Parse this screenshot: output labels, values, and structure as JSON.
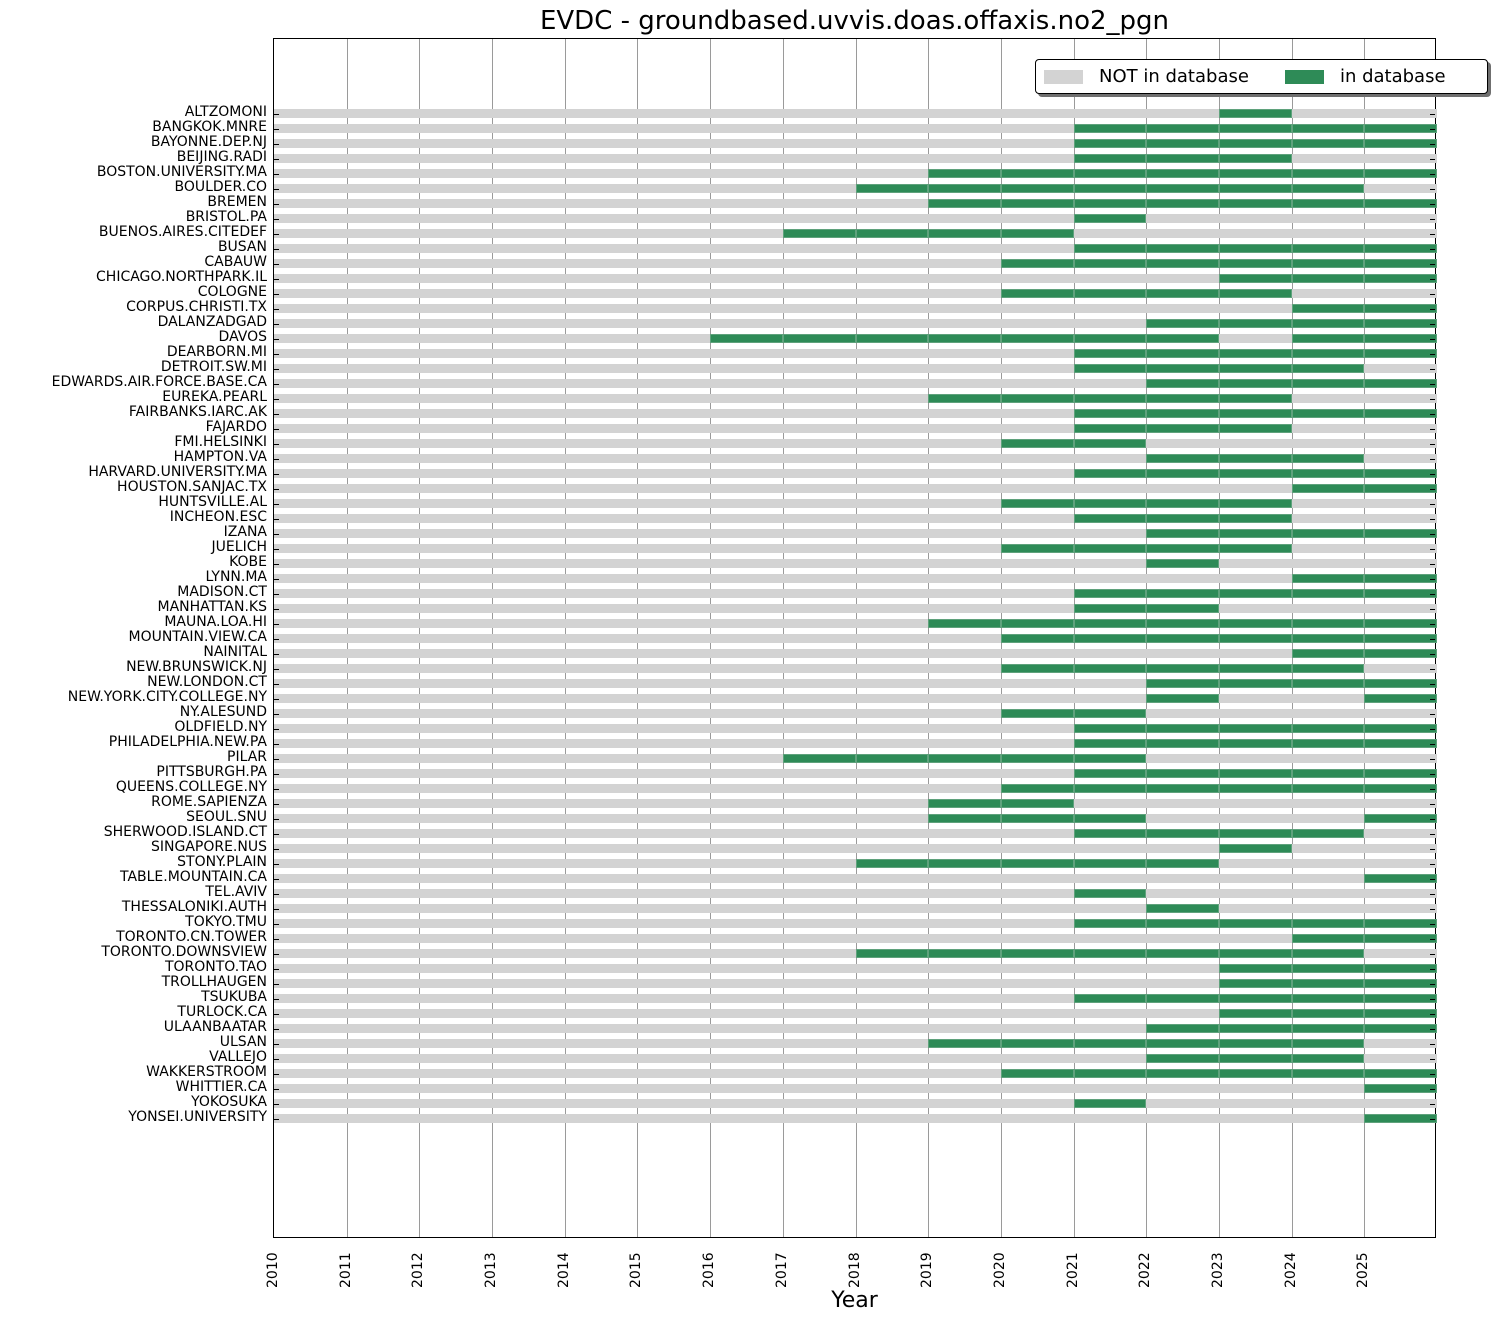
{
  "title": "EVDC - groundbased.uvvis.doas.offaxis.no2_pgn",
  "legend": [
    {
      "label": "NOT in database",
      "color": "#d3d3d3"
    },
    {
      "label": "in database",
      "color": "#2e8b57"
    }
  ],
  "xaxis": {
    "title": "Year",
    "ticks": [
      "2010",
      "2011",
      "2012",
      "2013",
      "2014",
      "2015",
      "2016",
      "2017",
      "2018",
      "2019",
      "2020",
      "2021",
      "2022",
      "2023",
      "2024",
      "2025"
    ],
    "range": [
      2010,
      2026
    ]
  },
  "chart_data": {
    "type": "bar",
    "subtype": "horizontal-timeline",
    "title": "EVDC - groundbased.uvvis.doas.offaxis.no2_pgn",
    "xlabel": "Year",
    "ylabel": "",
    "xlim": [
      2010,
      2026
    ],
    "grid": "vertical",
    "legend_position": "upper right",
    "series": [
      {
        "name": "NOT in database",
        "color": "#d3d3d3"
      },
      {
        "name": "in database",
        "color": "#2e8b57"
      }
    ],
    "categories": [
      "ALTZOMONI",
      "BANGKOK.MNRE",
      "BAYONNE.DEP.NJ",
      "BEIJING.RADI",
      "BOSTON.UNIVERSITY.MA",
      "BOULDER.CO",
      "BREMEN",
      "BRISTOL.PA",
      "BUENOS.AIRES.CITEDEF",
      "BUSAN",
      "CABAUW",
      "CHICAGO.NORTHPARK.IL",
      "COLOGNE",
      "CORPUS.CHRISTI.TX",
      "DALANZADGAD",
      "DAVOS",
      "DEARBORN.MI",
      "DETROIT.SW.MI",
      "EDWARDS.AIR.FORCE.BASE.CA",
      "EUREKA.PEARL",
      "FAIRBANKS.IARC.AK",
      "FAJARDO",
      "FMI.HELSINKI",
      "HAMPTON.VA",
      "HARVARD.UNIVERSITY.MA",
      "HOUSTON.SANJAC.TX",
      "HUNTSVILLE.AL",
      "INCHEON.ESC",
      "IZANA",
      "JUELICH",
      "KOBE",
      "LYNN.MA",
      "MADISON.CT",
      "MANHATTAN.KS",
      "MAUNA.LOA.HI",
      "MOUNTAIN.VIEW.CA",
      "NAINITAL",
      "NEW.BRUNSWICK.NJ",
      "NEW.LONDON.CT",
      "NEW.YORK.CITY.COLLEGE.NY",
      "NY.ALESUND",
      "OLDFIELD.NY",
      "PHILADELPHIA.NEW.PA",
      "PILAR",
      "PITTSBURGH.PA",
      "QUEENS.COLLEGE.NY",
      "ROME.SAPIENZA",
      "SEOUL.SNU",
      "SHERWOOD.ISLAND.CT",
      "SINGAPORE.NUS",
      "STONY.PLAIN",
      "TABLE.MOUNTAIN.CA",
      "TEL.AVIV",
      "THESSALONIKI.AUTH",
      "TOKYO.TMU",
      "TORONTO.CN.TOWER",
      "TORONTO.DOWNSVIEW",
      "TORONTO.TAO",
      "TROLLHAUGEN",
      "TSUKUBA",
      "TURLOCK.CA",
      "ULAANBAATAR",
      "ULSAN",
      "VALLEJO",
      "WAKKERSTROOM",
      "WHITTIER.CA",
      "YOKOSUKA",
      "YONSEI.UNIVERSITY"
    ],
    "years_in_database": {
      "ALTZOMONI": [
        2023
      ],
      "BANGKOK.MNRE": [
        2021,
        2022,
        2023,
        2024,
        2025
      ],
      "BAYONNE.DEP.NJ": [
        2021,
        2022,
        2023,
        2024,
        2025
      ],
      "BEIJING.RADI": [
        2021,
        2022,
        2023
      ],
      "BOSTON.UNIVERSITY.MA": [
        2019,
        2020,
        2021,
        2022,
        2023,
        2024,
        2025
      ],
      "BOULDER.CO": [
        2018,
        2019,
        2020,
        2021,
        2022,
        2023,
        2024
      ],
      "BREMEN": [
        2019,
        2020,
        2021,
        2022,
        2023,
        2024,
        2025
      ],
      "BRISTOL.PA": [
        2021
      ],
      "BUENOS.AIRES.CITEDEF": [
        2017,
        2018,
        2019,
        2020
      ],
      "BUSAN": [
        2021,
        2022,
        2023,
        2024,
        2025
      ],
      "CABAUW": [
        2020,
        2021,
        2022,
        2023,
        2024,
        2025
      ],
      "CHICAGO.NORTHPARK.IL": [
        2023,
        2024,
        2025
      ],
      "COLOGNE": [
        2020,
        2021,
        2022,
        2023
      ],
      "CORPUS.CHRISTI.TX": [
        2024,
        2025
      ],
      "DALANZADGAD": [
        2022,
        2023,
        2024,
        2025
      ],
      "DAVOS": [
        2016,
        2017,
        2018,
        2019,
        2020,
        2021,
        2022,
        2024,
        2025
      ],
      "DEARBORN.MI": [
        2021,
        2022,
        2023,
        2024,
        2025
      ],
      "DETROIT.SW.MI": [
        2021,
        2022,
        2023,
        2024
      ],
      "EDWARDS.AIR.FORCE.BASE.CA": [
        2022,
        2023,
        2024,
        2025
      ],
      "EUREKA.PEARL": [
        2019,
        2020,
        2021,
        2022,
        2023
      ],
      "FAIRBANKS.IARC.AK": [
        2021,
        2022,
        2023,
        2024,
        2025
      ],
      "FAJARDO": [
        2021,
        2022,
        2023
      ],
      "FMI.HELSINKI": [
        2020,
        2021
      ],
      "HAMPTON.VA": [
        2022,
        2023,
        2024
      ],
      "HARVARD.UNIVERSITY.MA": [
        2021,
        2022,
        2023,
        2024,
        2025
      ],
      "HOUSTON.SANJAC.TX": [
        2024,
        2025
      ],
      "HUNTSVILLE.AL": [
        2020,
        2021,
        2022,
        2023
      ],
      "INCHEON.ESC": [
        2021,
        2022,
        2023
      ],
      "IZANA": [
        2022,
        2023,
        2024,
        2025
      ],
      "JUELICH": [
        2020,
        2021,
        2022,
        2023
      ],
      "KOBE": [
        2022
      ],
      "LYNN.MA": [
        2024,
        2025
      ],
      "MADISON.CT": [
        2021,
        2022,
        2023,
        2024,
        2025
      ],
      "MANHATTAN.KS": [
        2021,
        2022
      ],
      "MAUNA.LOA.HI": [
        2019,
        2020,
        2021,
        2022,
        2023,
        2024,
        2025
      ],
      "MOUNTAIN.VIEW.CA": [
        2020,
        2021,
        2022,
        2023,
        2024,
        2025
      ],
      "NAINITAL": [
        2024,
        2025
      ],
      "NEW.BRUNSWICK.NJ": [
        2020,
        2021,
        2022,
        2023,
        2024
      ],
      "NEW.LONDON.CT": [
        2022,
        2023,
        2024,
        2025
      ],
      "NEW.YORK.CITY.COLLEGE.NY": [
        2022,
        2025
      ],
      "NY.ALESUND": [
        2020,
        2021
      ],
      "OLDFIELD.NY": [
        2021,
        2022,
        2023,
        2024,
        2025
      ],
      "PHILADELPHIA.NEW.PA": [
        2021,
        2022,
        2023,
        2024,
        2025
      ],
      "PILAR": [
        2017,
        2018,
        2019,
        2020,
        2021
      ],
      "PITTSBURGH.PA": [
        2021,
        2022,
        2023,
        2024,
        2025
      ],
      "QUEENS.COLLEGE.NY": [
        2020,
        2021,
        2022,
        2023,
        2024,
        2025
      ],
      "ROME.SAPIENZA": [
        2019,
        2020
      ],
      "SEOUL.SNU": [
        2019,
        2020,
        2021,
        2025
      ],
      "SHERWOOD.ISLAND.CT": [
        2021,
        2022,
        2023,
        2024
      ],
      "SINGAPORE.NUS": [
        2023
      ],
      "STONY.PLAIN": [
        2018,
        2019,
        2020,
        2021,
        2022
      ],
      "TABLE.MOUNTAIN.CA": [
        2025
      ],
      "TEL.AVIV": [
        2021
      ],
      "THESSALONIKI.AUTH": [
        2022
      ],
      "TOKYO.TMU": [
        2021,
        2022,
        2023,
        2024,
        2025
      ],
      "TORONTO.CN.TOWER": [
        2024,
        2025
      ],
      "TORONTO.DOWNSVIEW": [
        2018,
        2019,
        2020,
        2021,
        2022,
        2023,
        2024
      ],
      "TORONTO.TAO": [
        2023,
        2024,
        2025
      ],
      "TROLLHAUGEN": [
        2023,
        2024,
        2025
      ],
      "TSUKUBA": [
        2021,
        2022,
        2023,
        2024,
        2025
      ],
      "TURLOCK.CA": [
        2023,
        2024,
        2025
      ],
      "ULAANBAATAR": [
        2022,
        2023,
        2024,
        2025
      ],
      "ULSAN": [
        2019,
        2020,
        2021,
        2022,
        2023,
        2024
      ],
      "VALLEJO": [
        2022,
        2023,
        2024
      ],
      "WAKKERSTROOM": [
        2020,
        2021,
        2022,
        2023,
        2024,
        2025
      ],
      "WHITTIER.CA": [
        2025
      ],
      "YOKOSUKA": [
        2021
      ],
      "YONSEI.UNIVERSITY": [
        2025
      ]
    }
  }
}
